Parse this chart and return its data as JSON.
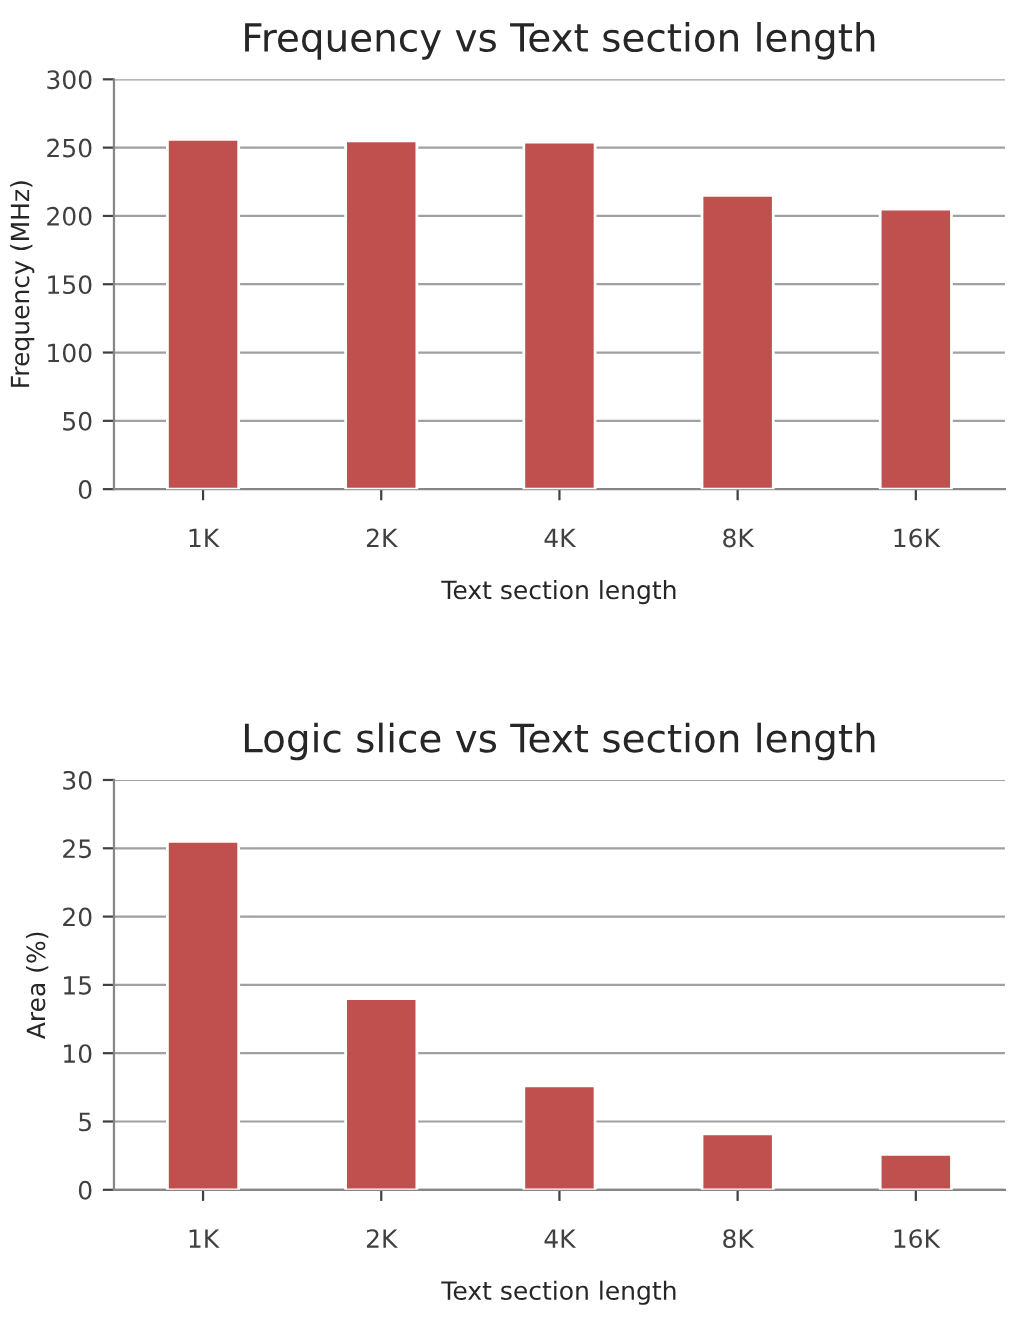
{
  "chart_data": [
    {
      "type": "bar",
      "title": "Frequency vs Text section length",
      "xlabel": "Text section length",
      "ylabel": "Frequency (MHz)",
      "categories": [
        "1K",
        "2K",
        "4K",
        "8K",
        "16K"
      ],
      "values": [
        256,
        255,
        254,
        215,
        205
      ],
      "color": "#c0504d",
      "ylim": [
        0,
        300
      ],
      "yticks": [
        0,
        50,
        100,
        150,
        200,
        250,
        300
      ],
      "grid": "y"
    },
    {
      "type": "bar",
      "title": "Logic slice vs Text section length",
      "xlabel": "Text section length",
      "ylabel": "Area (%)",
      "categories": [
        "1K",
        "2K",
        "4K",
        "8K",
        "16K"
      ],
      "values": [
        25.5,
        14,
        7.6,
        4.1,
        2.6
      ],
      "color": "#c0504d",
      "ylim": [
        0,
        30
      ],
      "yticks": [
        0,
        5,
        10,
        15,
        20,
        25,
        30
      ],
      "grid": "y"
    }
  ]
}
